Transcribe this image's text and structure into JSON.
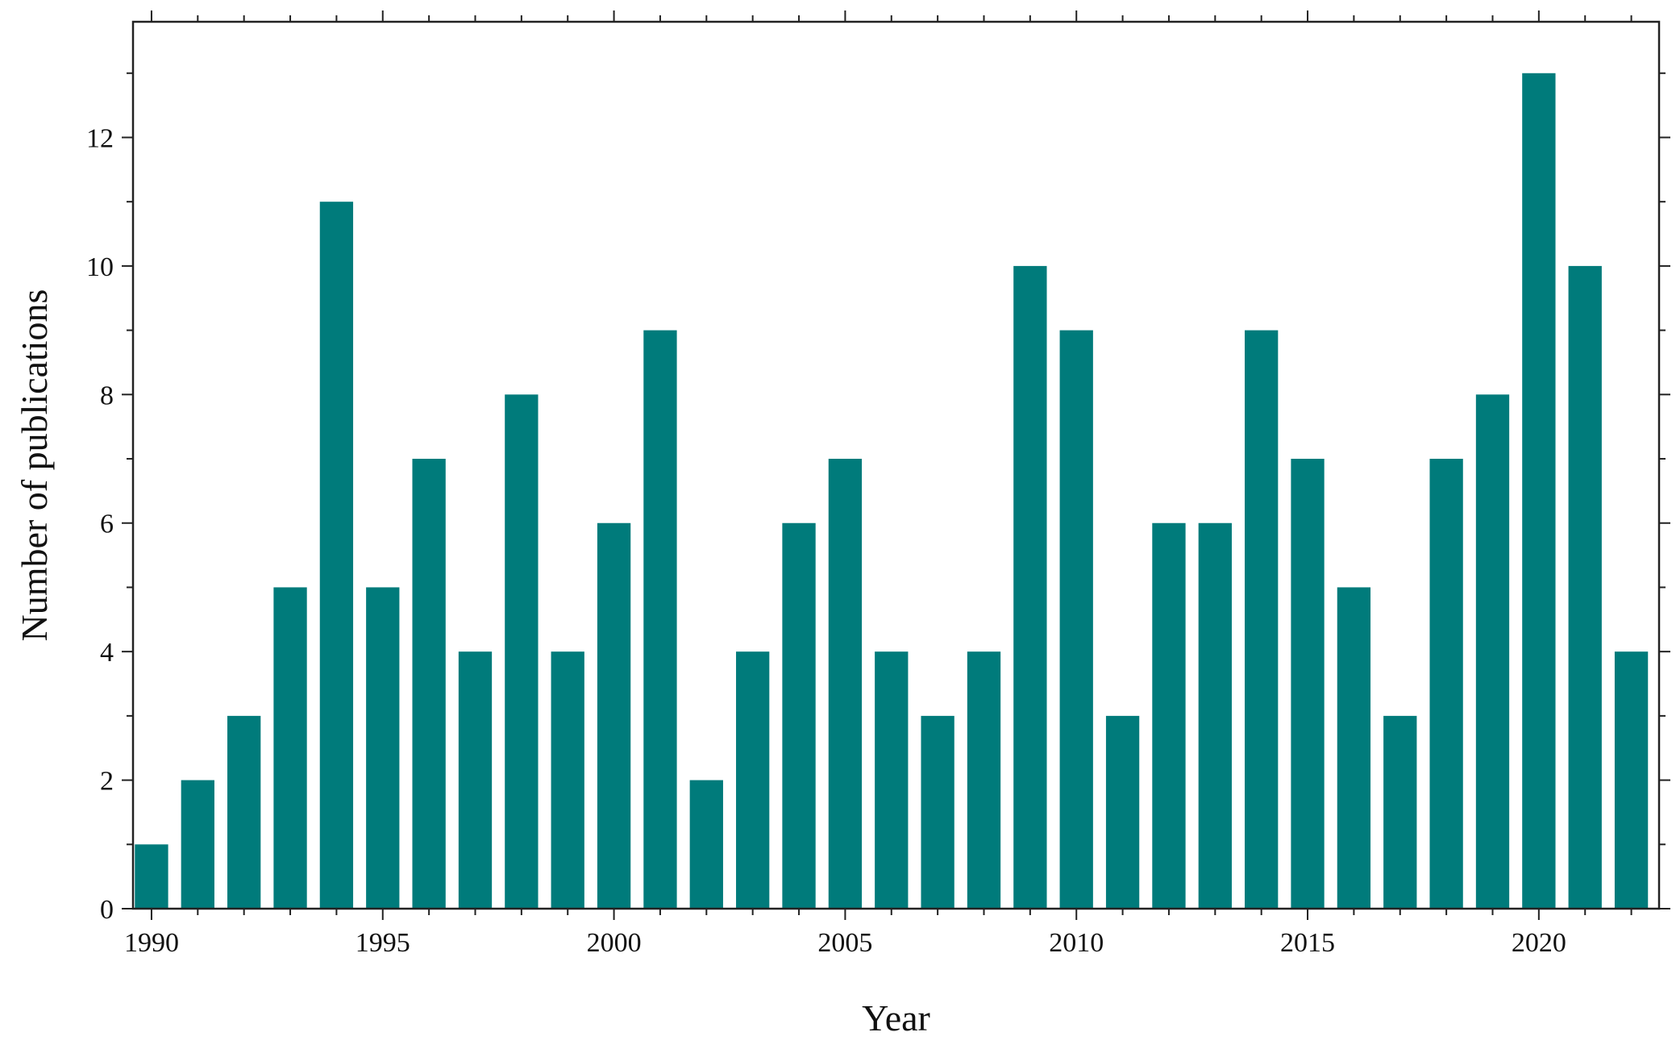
{
  "chart_data": {
    "type": "bar",
    "xlabel": "Year",
    "ylabel": "Number of publications",
    "color": "#007b7b",
    "xlim": [
      1989.6,
      2022.6
    ],
    "ylim": [
      0,
      13.8
    ],
    "grid": false,
    "legend": "none",
    "x_ticks": [
      1990,
      1995,
      2000,
      2005,
      2010,
      2015,
      2020
    ],
    "y_ticks": [
      0,
      2,
      4,
      6,
      8,
      10,
      12
    ],
    "x": [
      1990,
      1991,
      1992,
      1993,
      1994,
      1995,
      1996,
      1997,
      1998,
      1999,
      2000,
      2001,
      2002,
      2003,
      2004,
      2005,
      2006,
      2007,
      2008,
      2009,
      2010,
      2011,
      2012,
      2013,
      2014,
      2015,
      2016,
      2017,
      2018,
      2019,
      2020,
      2021,
      2022
    ],
    "values": [
      1,
      2,
      3,
      5,
      11,
      5,
      7,
      4,
      8,
      4,
      6,
      9,
      2,
      4,
      6,
      7,
      4,
      3,
      4,
      10,
      9,
      3,
      6,
      6,
      9,
      7,
      5,
      3,
      7,
      8,
      13,
      10,
      4
    ]
  }
}
